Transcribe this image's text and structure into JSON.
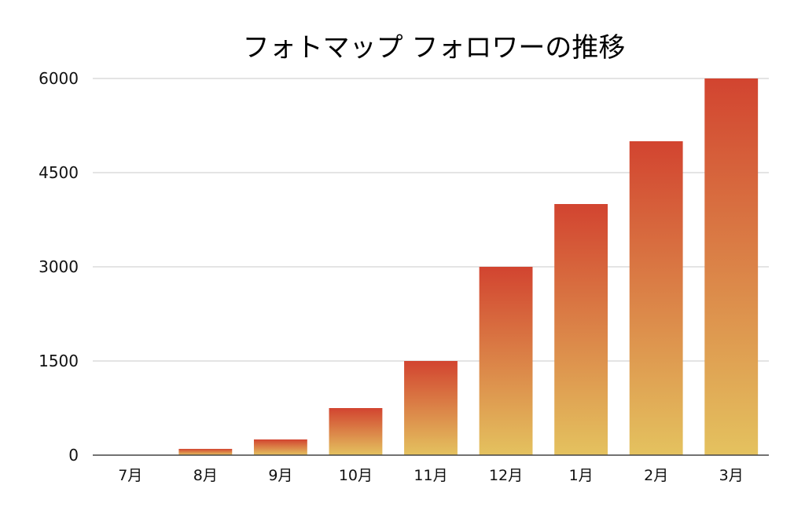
{
  "chart_data": {
    "type": "bar",
    "title": "フォトマップ フォロワーの推移",
    "xlabel": "",
    "ylabel": "",
    "categories": [
      "7月",
      "8月",
      "9月",
      "10月",
      "11月",
      "12月",
      "1月",
      "2月",
      "3月"
    ],
    "values": [
      0,
      100,
      250,
      750,
      1500,
      3000,
      4000,
      5000,
      6000
    ],
    "ylim": [
      0,
      6000
    ],
    "yticks": [
      0,
      1500,
      3000,
      4500,
      6000
    ],
    "grid": true,
    "legend": "none",
    "colors": {
      "bar_top": "#d24430",
      "bar_bottom": "#e4c25f",
      "grid": "#c8c8c8",
      "axis": "#444444"
    }
  }
}
